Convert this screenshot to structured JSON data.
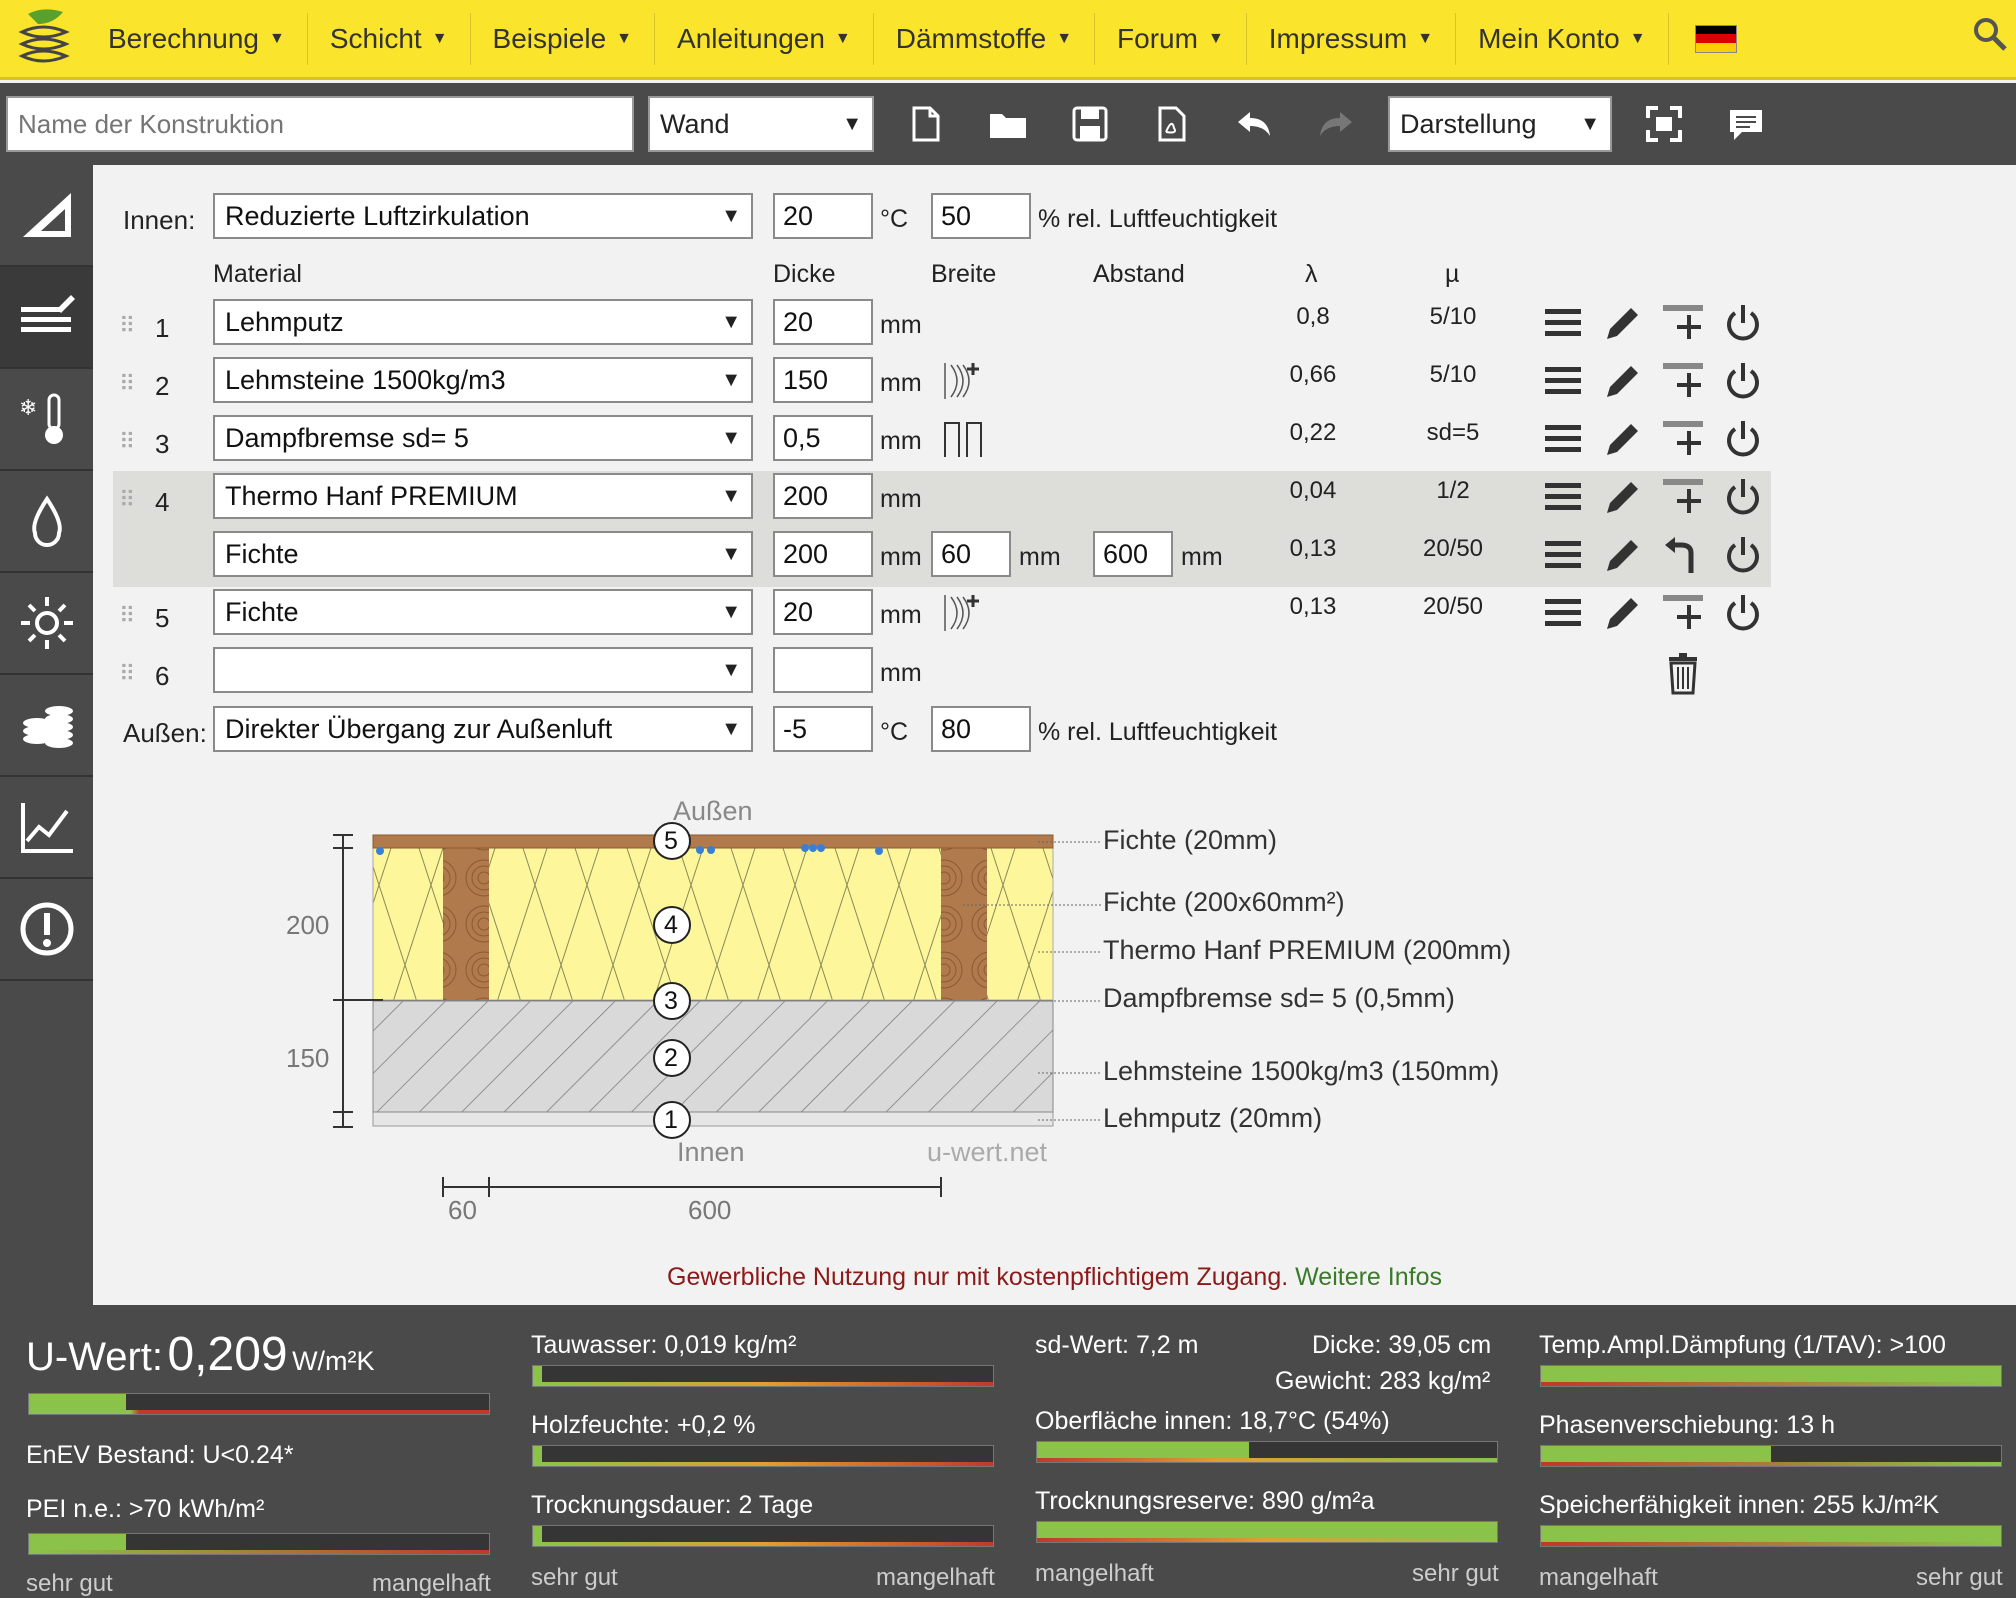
{
  "nav": {
    "items": [
      "Berechnung",
      "Schicht",
      "Beispiele",
      "Anleitungen",
      "Dämmstoffe",
      "Forum",
      "Impressum",
      "Mein Konto"
    ]
  },
  "toolbar": {
    "name_placeholder": "Name der Konstruktion",
    "type_value": "Wand",
    "view_value": "Darstellung"
  },
  "inner": {
    "label": "Innen:",
    "condition": "Reduzierte Luftzirkulation",
    "temp": "20",
    "temp_unit": "°C",
    "humidity": "50",
    "humidity_unit": "% rel. Luftfeuchtigkeit"
  },
  "outer": {
    "label": "Außen:",
    "condition": "Direkter Übergang zur Außenluft",
    "temp": "-5",
    "temp_unit": "°C",
    "humidity": "80",
    "humidity_unit": "% rel. Luftfeuchtigkeit"
  },
  "headers": {
    "material": "Material",
    "dicke": "Dicke",
    "breite": "Breite",
    "abstand": "Abstand",
    "lambda": "λ",
    "mu": "µ"
  },
  "layers": [
    {
      "num": "1",
      "material": "Lehmputz",
      "dicke": "20",
      "unit": "mm",
      "lambda": "0,8",
      "mu": "5/10"
    },
    {
      "num": "2",
      "material": "Lehmsteine 1500kg/m3",
      "dicke": "150",
      "unit": "mm",
      "lambda": "0,66",
      "mu": "5/10"
    },
    {
      "num": "3",
      "material": "Dampfbremse sd= 5",
      "dicke": "0,5",
      "unit": "mm",
      "lambda": "0,22",
      "mu": "sd=5"
    },
    {
      "num": "4",
      "material": "Thermo Hanf PREMIUM",
      "dicke": "200",
      "unit": "mm",
      "lambda": "0,04",
      "mu": "1/2"
    },
    {
      "num": "",
      "material": "Fichte",
      "dicke": "200",
      "unit": "mm",
      "breite": "60",
      "abstand": "600",
      "lambda": "0,13",
      "mu": "20/50"
    },
    {
      "num": "5",
      "material": "Fichte",
      "dicke": "20",
      "unit": "mm",
      "lambda": "0,13",
      "mu": "20/50"
    },
    {
      "num": "6",
      "material": "",
      "dicke": "",
      "unit": "mm"
    }
  ],
  "diagram": {
    "top_label": "Außen",
    "bottom_label": "Innen",
    "watermark": "u-wert.net",
    "dim_200": "200",
    "dim_150": "150",
    "dim_60": "60",
    "dim_600": "600",
    "circle_labels": [
      "5",
      "4",
      "3",
      "2",
      "1"
    ],
    "legend": [
      "Fichte (20mm)",
      "Fichte (200x60mm²)",
      "Thermo Hanf PREMIUM (200mm)",
      "Dampfbremse sd= 5 (0,5mm)",
      "Lehmsteine 1500kg/m3 (150mm)",
      "Lehmputz (20mm)"
    ]
  },
  "notice": {
    "text": "Gewerbliche Nutzung nur mit kostenpflichtigem Zugang.",
    "link": "Weitere Infos"
  },
  "results": {
    "uwert_label": "U-Wert:",
    "uwert_value": "0,209",
    "uwert_unit": "W/m²K",
    "enev": "EnEV Bestand: U<0.24*",
    "pei": "PEI n.e.: >70 kWh/m²",
    "tauwasser": "Tauwasser: 0,019 kg/m²",
    "holzfeuchte": "Holzfeuchte: +0,2 %",
    "trocknungsdauer": "Trocknungsdauer: 2 Tage",
    "sdwert": "sd-Wert: 7,2 m",
    "dicke": "Dicke: 39,05 cm",
    "gewicht": "Gewicht: 283 kg/m²",
    "oberflaeche": "Oberfläche innen: 18,7°C (54%)",
    "trocknungsreserve": "Trocknungsreserve: 890 g/m²a",
    "tav": "Temp.Ampl.Dämpfung (1/TAV): >100",
    "phase": "Phasenverschiebung: 13 h",
    "speicher": "Speicherfähigkeit innen: 255 kJ/m²K",
    "scale_good": "sehr gut",
    "scale_bad": "mangelhaft",
    "bars": {
      "uwert": 0.21,
      "pei": 0.21,
      "tauwasser": 0.02,
      "holzfeuchte": 0.02,
      "trocknungsdauer": 0.02,
      "oberflaeche": 0.46,
      "trocknungsreserve": 1.0,
      "tav": 1.0,
      "phase": 0.5,
      "speicher": 1.0
    }
  }
}
